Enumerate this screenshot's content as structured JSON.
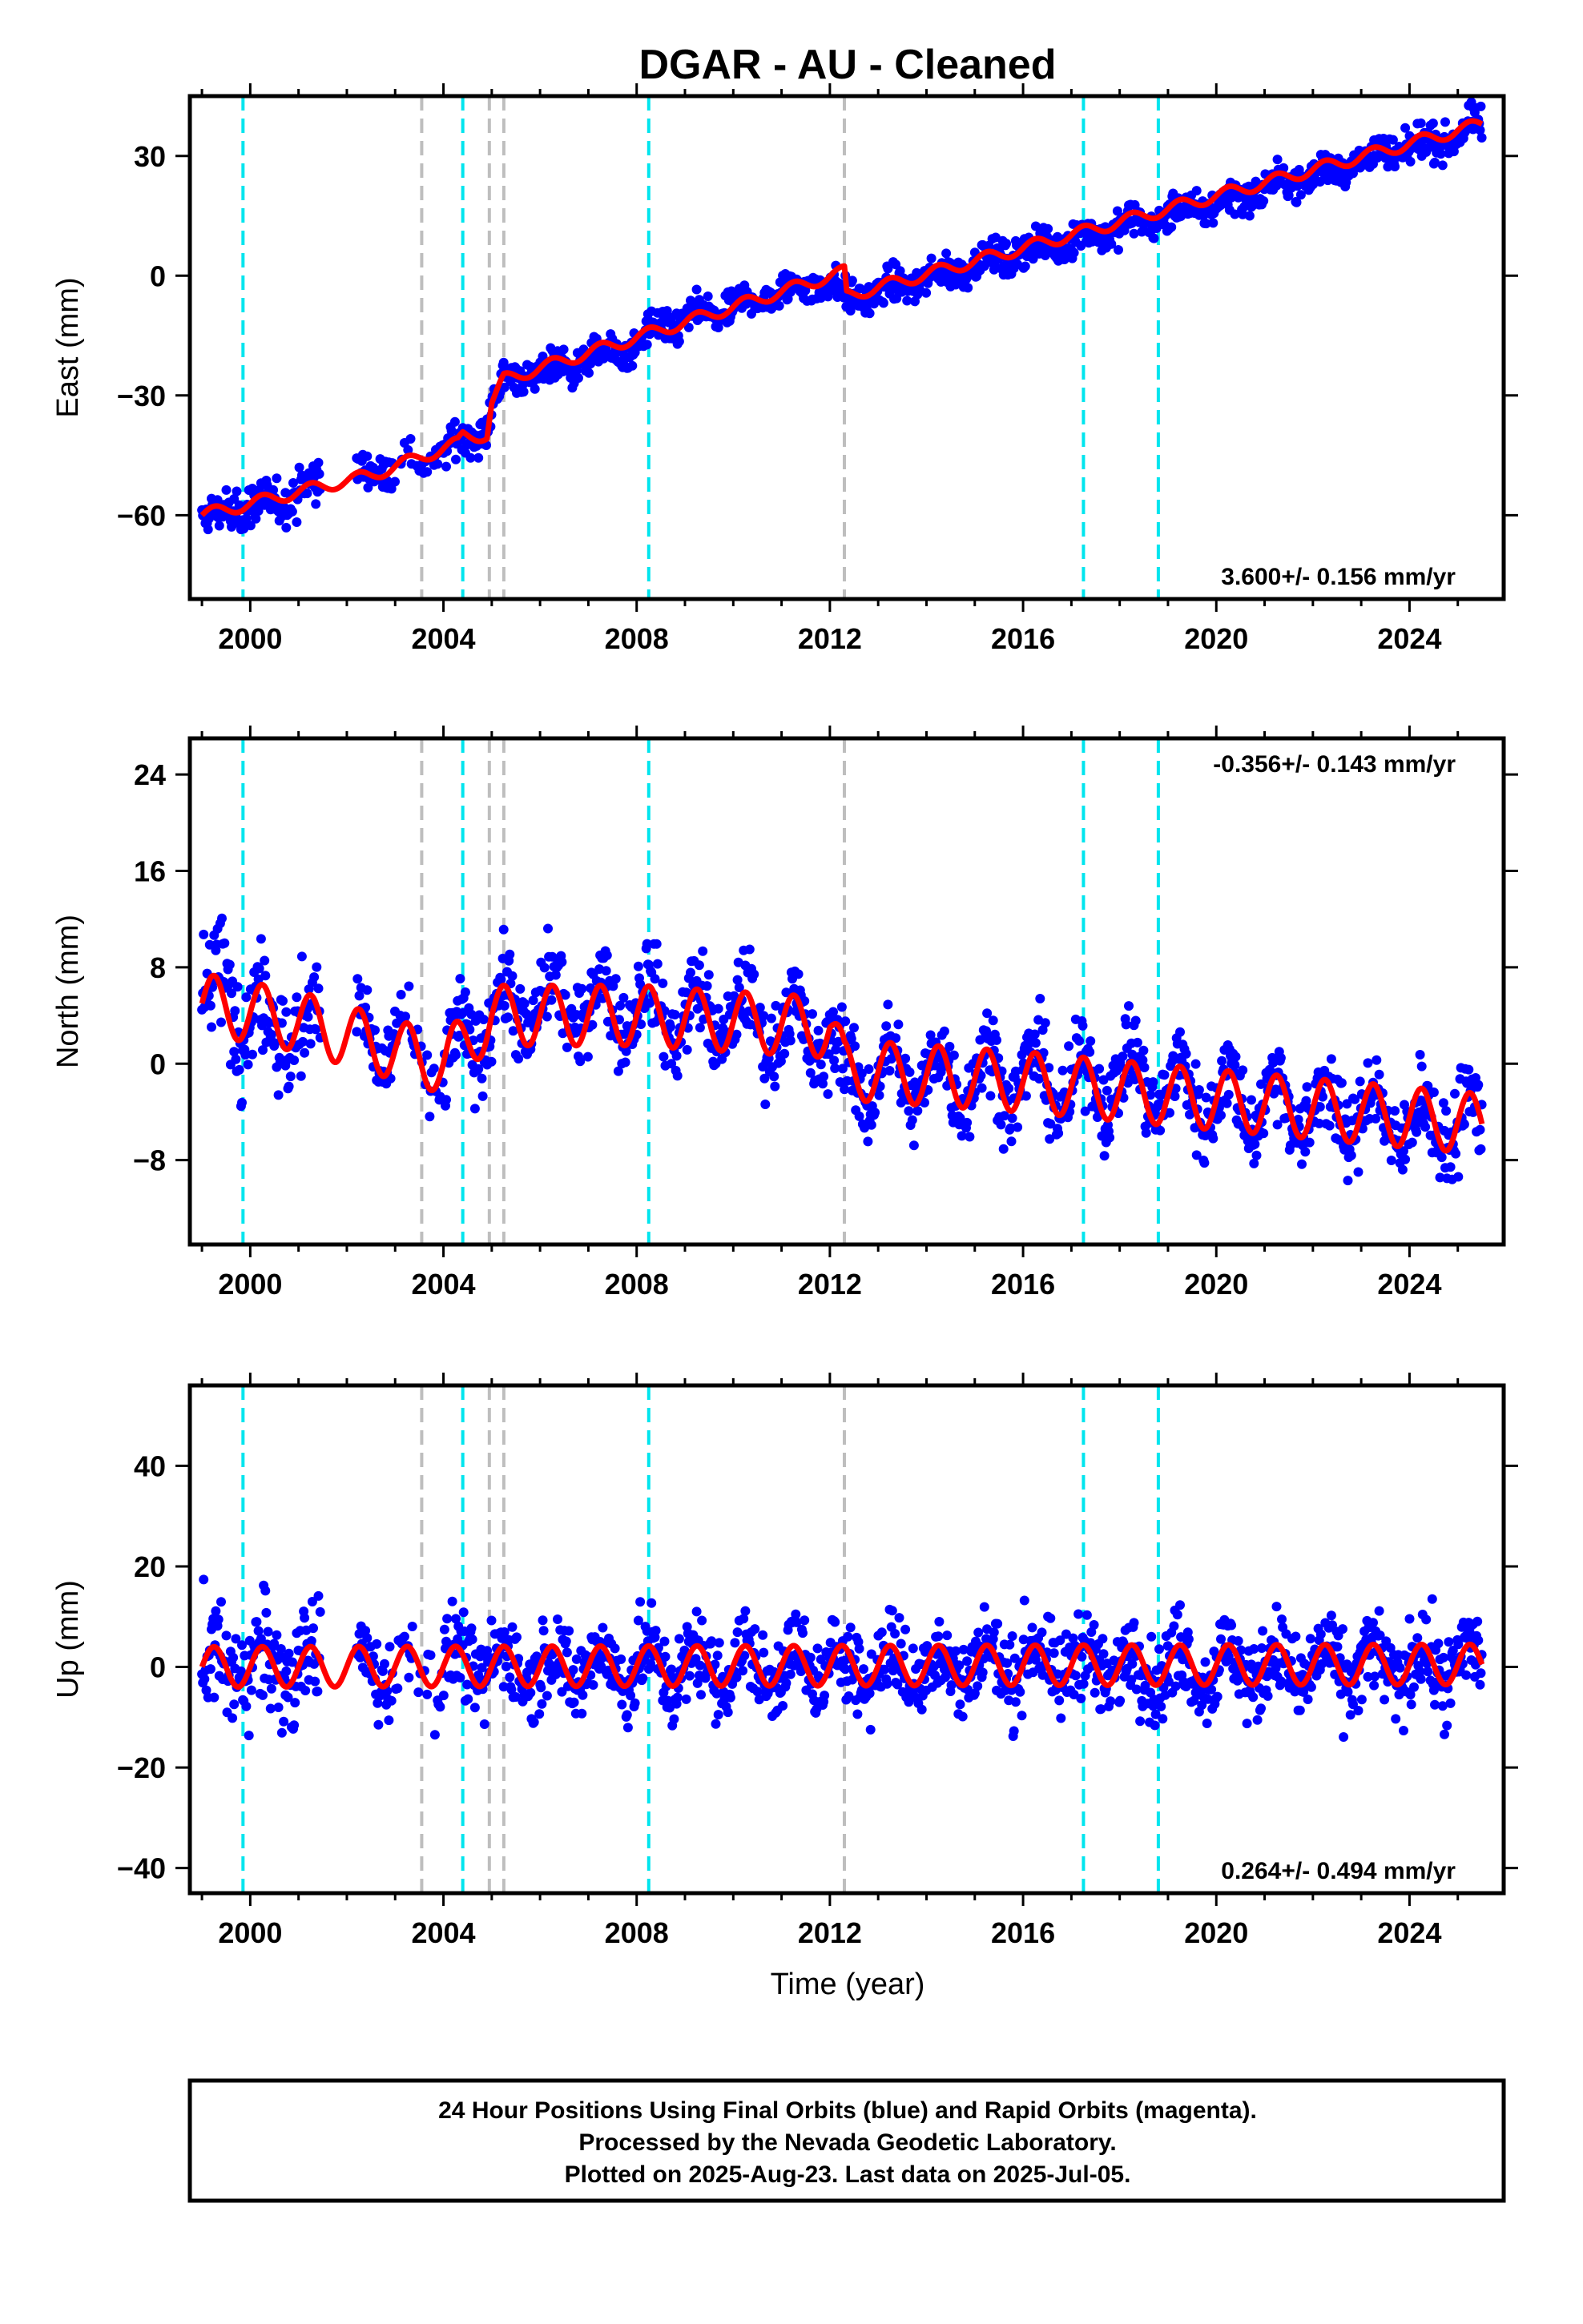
{
  "title": "DGAR  - AU - Cleaned",
  "xlabel": "Time (year)",
  "footer": [
    "24 Hour Positions Using Final Orbits (blue) and Rapid Orbits (magenta).",
    "Processed by the Nevada Geodetic Laboratory.",
    "Plotted on 2025-Aug-23. Last data on 2025-Jul-05."
  ],
  "colors": {
    "data": "#0000ff",
    "model": "#ff0000",
    "equipment_change": "#00e5ee",
    "earthquake": "#bebebe"
  },
  "chart_data": [
    {
      "type": "scatter",
      "panel": "east",
      "ylabel": "East (mm)",
      "xlim": [
        1998.75,
        2025.95
      ],
      "ylim": [
        -81,
        45
      ],
      "xticks": [
        2000,
        2004,
        2008,
        2012,
        2016,
        2020,
        2024
      ],
      "yticks": [
        -60,
        -30,
        0,
        30
      ],
      "ytick_labels": [
        "−60",
        "−30",
        "0",
        "30"
      ],
      "rate_text": "3.600+/- 0.156 mm/yr",
      "rate_position": "bottom-right",
      "equipment_change_years": [
        1999.85,
        2004.4,
        2008.25,
        2017.25,
        2018.8
      ],
      "earthquake_years": [
        2003.55,
        2004.95,
        2005.25,
        2012.3
      ],
      "series": [
        {
          "name": "daily",
          "style": "points",
          "x": [
            1999.0,
            1999.5,
            2000.0,
            2000.5,
            2001.0,
            2001.4,
            2002.5,
            2003.0,
            2003.5,
            2004.0,
            2004.3,
            2004.5,
            2004.9,
            2005.0,
            2005.3,
            2006.0,
            2007.0,
            2008.0,
            2008.3,
            2009.0,
            2010.0,
            2011.0,
            2012.0,
            2012.3,
            2013.0,
            2014.0,
            2015.0,
            2016.0,
            2017.0,
            2018.0,
            2019.0,
            2020.0,
            2021.0,
            2022.0,
            2023.0,
            2024.0,
            2025.0,
            2025.5
          ],
          "y": [
            -62,
            -59,
            -58,
            -57,
            -54,
            -52,
            -49,
            -48,
            -47,
            -44,
            -42,
            -40,
            -39,
            -32,
            -26,
            -24,
            -21,
            -18,
            -14,
            -11,
            -8,
            -4,
            -1,
            -6,
            -4,
            -1,
            3,
            6,
            9,
            12,
            15,
            18,
            22,
            25,
            29,
            32,
            35,
            38
          ],
          "spread": 3
        },
        {
          "name": "model",
          "style": "line",
          "x": [
            1999.0,
            2001.4,
            2002.5,
            2004.3,
            2004.4,
            2004.9,
            2005.0,
            2005.25,
            2012.3,
            2012.35,
            2025.5
          ],
          "y": [
            -60,
            -53,
            -50,
            -42,
            -40,
            -40,
            -32,
            -26,
            1,
            -5,
            38
          ],
          "seasonal_amplitude": 1.5
        }
      ]
    },
    {
      "type": "scatter",
      "panel": "north",
      "ylabel": "North (mm)",
      "xlim": [
        1998.75,
        2025.95
      ],
      "ylim": [
        -15,
        27
      ],
      "xticks": [
        2000,
        2004,
        2008,
        2012,
        2016,
        2020,
        2024
      ],
      "yticks": [
        -8,
        0,
        8,
        16,
        24
      ],
      "ytick_labels": [
        "−8",
        "0",
        "8",
        "16",
        "24"
      ],
      "rate_text": "-0.356+/- 0.143 mm/yr",
      "rate_position": "top-right",
      "equipment_change_years": [
        1999.85,
        2004.4,
        2008.25,
        2017.25,
        2018.8
      ],
      "earthquake_years": [
        2003.55,
        2004.95,
        2005.25,
        2012.3
      ],
      "series": [
        {
          "name": "daily",
          "style": "points",
          "x": [
            1999.0,
            1999.5,
            2000.0,
            2001.0,
            2002.5,
            2003.5,
            2004.0,
            2004.4,
            2005.0,
            2006.0,
            2007.0,
            2008.0,
            2009.0,
            2010.0,
            2011.0,
            2012.0,
            2012.3,
            2013.0,
            2014.0,
            2015.0,
            2016.0,
            2017.0,
            2018.0,
            2019.0,
            2020.0,
            2021.0,
            2022.0,
            2023.0,
            2024.0,
            2025.5
          ],
          "y": [
            5,
            7,
            4,
            3,
            2,
            1,
            -2,
            2,
            4,
            5,
            5,
            5,
            4,
            4,
            3,
            2,
            -1,
            -1,
            -1,
            -1,
            -1,
            -2,
            -1,
            -2,
            -3,
            -3,
            -4,
            -4,
            -5,
            -5
          ],
          "spread": 2.5
        },
        {
          "name": "model",
          "style": "line",
          "x": [
            1999.0,
            2001.0,
            2004.0,
            2004.4,
            2005.0,
            2008.0,
            2012.0,
            2012.3,
            2016.0,
            2020.0,
            2025.5
          ],
          "y": [
            5,
            3.5,
            0,
            1.5,
            4,
            4,
            3,
            -0.5,
            -1.5,
            -3,
            -5
          ],
          "seasonal_amplitude": 2.5
        }
      ]
    },
    {
      "type": "scatter",
      "panel": "up",
      "ylabel": "Up (mm)",
      "xlim": [
        1998.75,
        2025.95
      ],
      "ylim": [
        -45,
        56
      ],
      "xticks": [
        2000,
        2004,
        2008,
        2012,
        2016,
        2020,
        2024
      ],
      "yticks": [
        -40,
        -20,
        0,
        20,
        40
      ],
      "ytick_labels": [
        "−40",
        "−20",
        "0",
        "20",
        "40"
      ],
      "rate_text": "0.264+/- 0.494 mm/yr",
      "rate_position": "bottom-right",
      "equipment_change_years": [
        1999.85,
        2004.4,
        2008.25,
        2017.25,
        2018.8
      ],
      "earthquake_years": [
        2003.55,
        2004.95,
        2005.25,
        2012.3
      ],
      "series": [
        {
          "name": "daily",
          "style": "points",
          "x": [
            1999.0,
            2000.0,
            2001.0,
            2002.5,
            2004.0,
            2004.4,
            2006.0,
            2008.0,
            2010.0,
            2012.0,
            2014.0,
            2016.0,
            2018.0,
            2020.0,
            2022.0,
            2024.0,
            2025.5
          ],
          "y": [
            0,
            0,
            0,
            0,
            0,
            1,
            0,
            0,
            0,
            0,
            0,
            1,
            0,
            0,
            0,
            0,
            1
          ],
          "spread": 6
        },
        {
          "name": "model",
          "style": "line",
          "x": [
            1999.0,
            2025.5
          ],
          "y": [
            0,
            0.5
          ],
          "seasonal_amplitude": 4
        }
      ]
    }
  ]
}
